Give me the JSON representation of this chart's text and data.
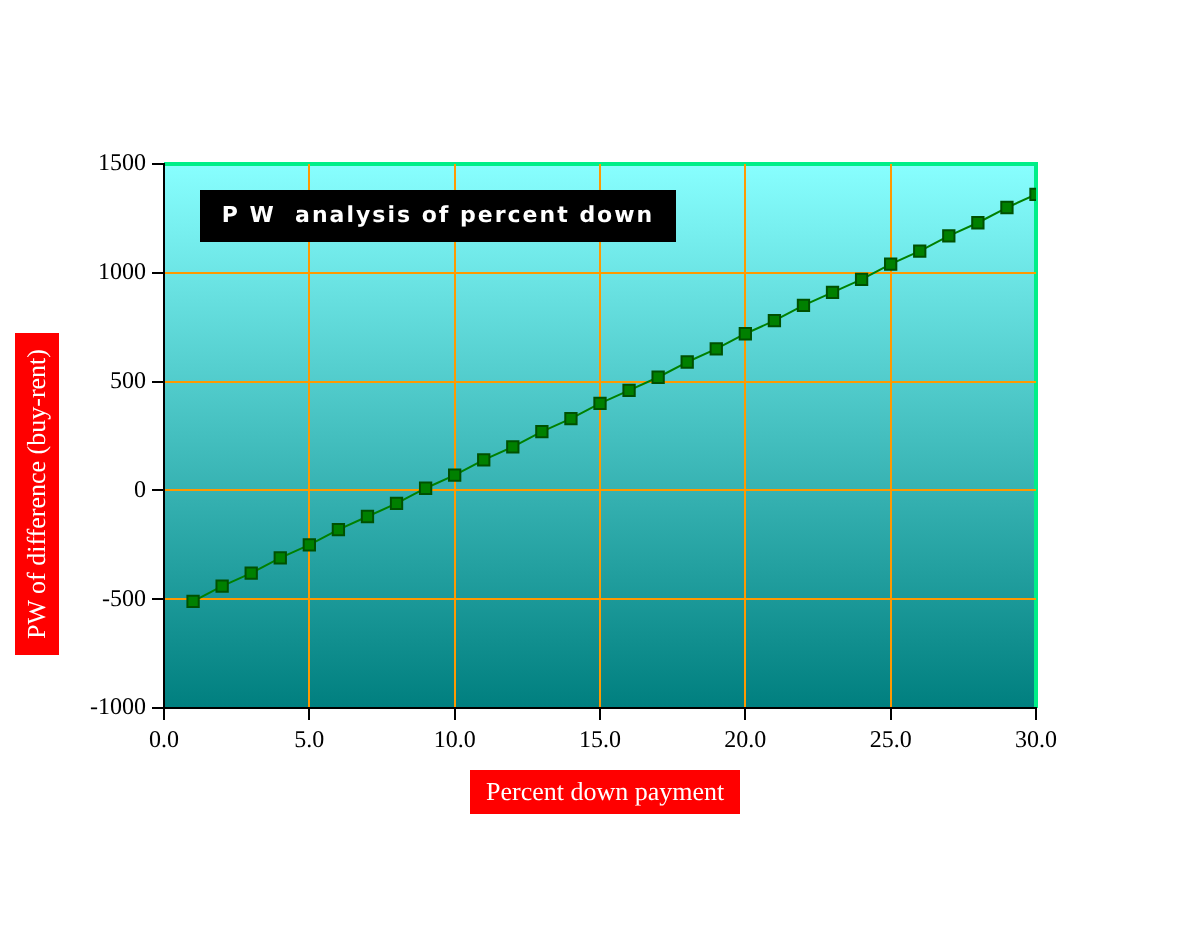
{
  "chart_data": {
    "type": "line",
    "title": "P W  analysis of percent down",
    "xlabel": "Percent down payment",
    "ylabel": "PW of difference (buy-rent)",
    "x": [
      1,
      2,
      3,
      4,
      5,
      6,
      7,
      8,
      9,
      10,
      11,
      12,
      13,
      14,
      15,
      16,
      17,
      18,
      19,
      20,
      21,
      22,
      23,
      24,
      25,
      26,
      27,
      28,
      29,
      30
    ],
    "series": [
      {
        "color": "#008000",
        "values": [
          -510,
          -440,
          -380,
          -310,
          -250,
          -180,
          -120,
          -60,
          10,
          70,
          140,
          200,
          270,
          330,
          400,
          460,
          520,
          590,
          650,
          720,
          780,
          850,
          910,
          970,
          1040,
          1100,
          1170,
          1230,
          1300,
          1360
        ]
      }
    ],
    "xlim": [
      0,
      30
    ],
    "xticks": [
      {
        "value": 0,
        "label": "0.0"
      },
      {
        "value": 5,
        "label": "5.0"
      },
      {
        "value": 10,
        "label": "10.0"
      },
      {
        "value": 15,
        "label": "15.0"
      },
      {
        "value": 20,
        "label": "20.0"
      },
      {
        "value": 25,
        "label": "25.0"
      },
      {
        "value": 30,
        "label": "30.0"
      }
    ],
    "ylim": [
      -1000,
      1500
    ],
    "yticks": [
      -1000,
      -500,
      0,
      500,
      1000,
      1500
    ],
    "grid": true,
    "marker": "square",
    "line_style": "solid"
  }
}
